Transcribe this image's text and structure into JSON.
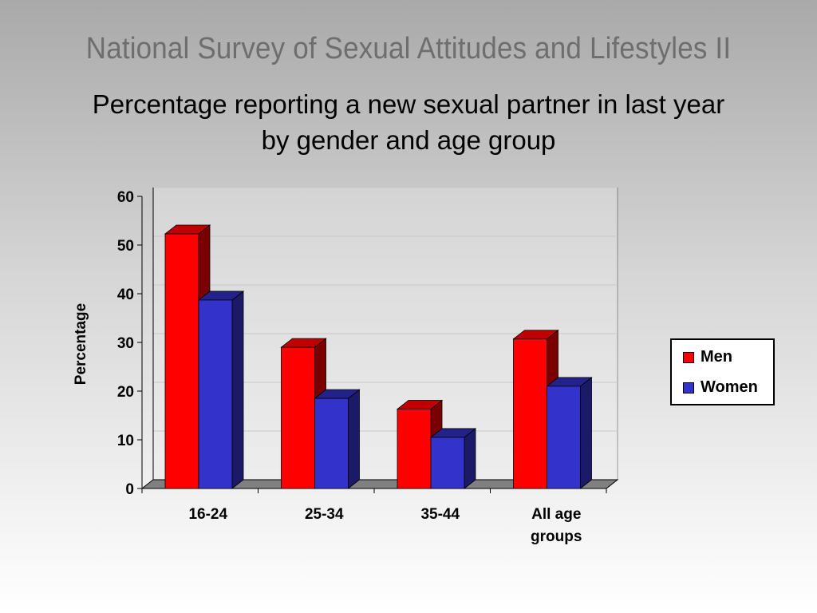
{
  "slide": {
    "title": "National Survey of Sexual Attitudes and Lifestyles II"
  },
  "chart_data": {
    "type": "bar",
    "style": "3d-clustered",
    "title": "Percentage reporting a new sexual partner in last year by gender and age group",
    "xlabel": "",
    "ylabel": "Percentage",
    "ylim": [
      0,
      60
    ],
    "yticks": [
      0,
      10,
      20,
      30,
      40,
      50,
      60
    ],
    "grid": true,
    "legend_position": "right",
    "categories": [
      [
        "16-24"
      ],
      [
        "25-34"
      ],
      [
        "35-44"
      ],
      [
        "All age",
        "groups"
      ]
    ],
    "series": [
      {
        "name": "Men",
        "color": "#ff0000",
        "side_color": "#7a0000",
        "top_color": "#c00000",
        "values": [
          52.3,
          29,
          16.3,
          30.7
        ]
      },
      {
        "name": "Women",
        "color": "#3333cc",
        "side_color": "#1a1a66",
        "top_color": "#22228a",
        "values": [
          38.7,
          18.5,
          10.5,
          21
        ]
      }
    ]
  }
}
